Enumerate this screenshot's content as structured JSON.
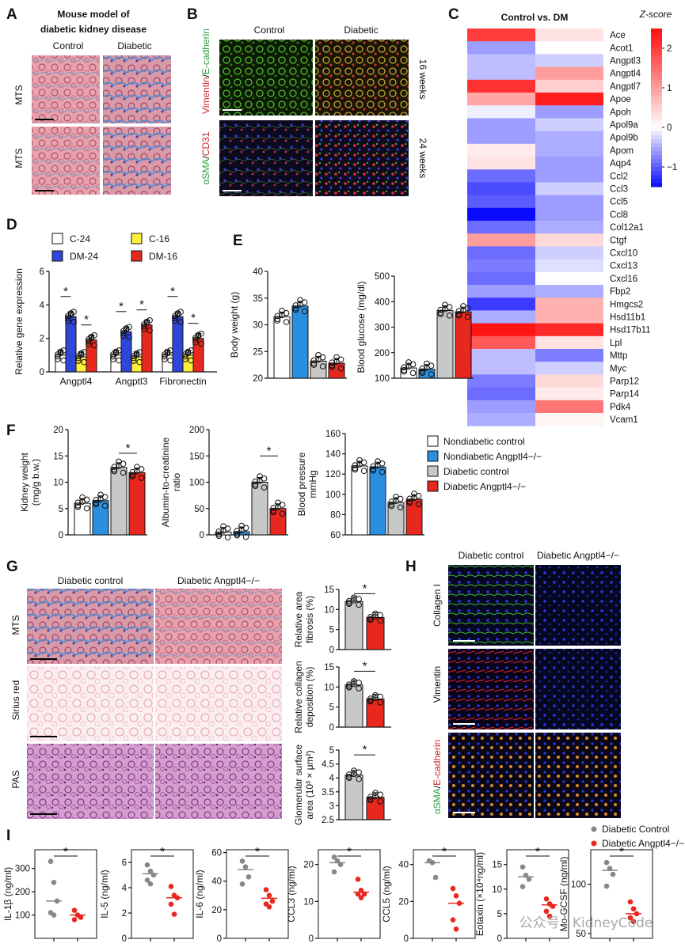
{
  "panels": {
    "A": {
      "letter": "A",
      "title_line1": "Mouse model of",
      "title_line2": "diabetic kidney disease",
      "col_control": "Control",
      "col_diabetic": "Diabetic",
      "row1": "MTS",
      "row2": "MTS"
    },
    "B": {
      "letter": "B",
      "col_control": "Control",
      "col_diabetic": "Diabetic",
      "row1_stain_a": "Vimentin",
      "row1_stain_b": "E-cadherin",
      "row2_stain_a": "αSMA",
      "row2_stain_b": "CD31",
      "sep": "/",
      "week1": "16 weeks",
      "week2": "24 weeks"
    },
    "C": {
      "letter": "C",
      "title": "Control vs. DM",
      "zlabel": "Z-score",
      "zticks": [
        "2",
        "1",
        "0",
        "−1"
      ]
    },
    "D": {
      "letter": "D",
      "legend": [
        "C-24",
        "DM-24",
        "C-16",
        "DM-16"
      ]
    },
    "E": {
      "letter": "E"
    },
    "F": {
      "letter": "F",
      "legend": [
        "Nondiabetic control",
        "Nondiabetic Angptl4−/−",
        "Diabetic control",
        "Diabetic Angptl4−/−"
      ]
    },
    "G": {
      "letter": "G",
      "col_a": "Diabetic control",
      "col_b": "Diabetic Angptl4−/−",
      "row1": "MTS",
      "row2": "Sirius red",
      "row3": "PAS"
    },
    "H": {
      "letter": "H",
      "col_a": "Diabetic control",
      "col_b": "Diabetic Angptl4−/−",
      "row1": "Collagen I",
      "row2": "Vimentin",
      "row3_a": "αSMA",
      "row3_b": "E-cadherin",
      "sep": "/"
    },
    "I": {
      "letter": "I",
      "legend": [
        "Diabetic Control",
        "Diabetic Angptl4−/−"
      ]
    }
  },
  "watermark": "公众号 · KidneyCode",
  "colors": {
    "white": "#ffffff",
    "blue": "#2f46d8",
    "yellow": "#ffef3a",
    "red": "#e8281e",
    "lightblue": "#2b8fe0",
    "gray": "#c8c8c8",
    "dotgray": "#888888",
    "dotred": "#e8281e"
  },
  "chart_data": [
    {
      "id": "C",
      "type": "heatmap",
      "title": "Control vs. DM",
      "columns": [
        "Control",
        "DM"
      ],
      "colorbar": {
        "min": -1.5,
        "max": 2.5,
        "ticks": [
          2,
          1,
          0,
          -1
        ],
        "label": "Z-score"
      },
      "genes": [
        "Ace",
        "Acot1",
        "Angptl3",
        "Angptl4",
        "Angptl7",
        "Apoe",
        "Apoh",
        "Apol9a",
        "Apol9b",
        "Apom",
        "Aqp4",
        "Ccl2",
        "Ccl3",
        "Ccl5",
        "Ccl8",
        "Col12a1",
        "Ctgf",
        "Cxcl10",
        "Cxcl13",
        "Cxcl16",
        "Fbp2",
        "Hmgcs2",
        "Hsd11b1",
        "Hsd17b11",
        "Lpl",
        "Mttp",
        "Myc",
        "Parp12",
        "Parp14",
        "Pdk4",
        "Vcam1"
      ],
      "values": [
        [
          2.0,
          0.3
        ],
        [
          -0.6,
          0.0
        ],
        [
          -0.4,
          -0.3
        ],
        [
          -0.4,
          1.0
        ],
        [
          2.1,
          0.5
        ],
        [
          0.9,
          2.3
        ],
        [
          -0.1,
          -0.6
        ],
        [
          -0.6,
          -0.3
        ],
        [
          -0.6,
          -0.5
        ],
        [
          0.2,
          -0.5
        ],
        [
          0.3,
          -0.6
        ],
        [
          -0.9,
          -0.6
        ],
        [
          -1.1,
          -0.3
        ],
        [
          -1.0,
          -0.6
        ],
        [
          -1.5,
          -0.6
        ],
        [
          -0.9,
          -0.5
        ],
        [
          1.0,
          0.4
        ],
        [
          -0.9,
          -0.3
        ],
        [
          -0.8,
          -0.2
        ],
        [
          -0.9,
          0.0
        ],
        [
          -0.6,
          -0.5
        ],
        [
          -1.2,
          0.8
        ],
        [
          -0.5,
          0.8
        ],
        [
          2.4,
          2.2
        ],
        [
          1.7,
          0.3
        ],
        [
          -0.4,
          -0.8
        ],
        [
          -0.4,
          -0.3
        ],
        [
          -0.8,
          0.4
        ],
        [
          -0.9,
          0.2
        ],
        [
          -0.6,
          1.4
        ],
        [
          -0.5,
          0.1
        ]
      ]
    },
    {
      "id": "D",
      "type": "bar",
      "ylabel": "Relative gene expression",
      "ylim": [
        0,
        6
      ],
      "yticks": [
        0,
        2,
        4,
        6
      ],
      "categories": [
        "Angptl4",
        "Angptl3",
        "Fibronectin"
      ],
      "series": [
        {
          "name": "C-24",
          "values": [
            1.0,
            1.0,
            1.0
          ]
        },
        {
          "name": "DM-24",
          "values": [
            3.3,
            2.4,
            3.3
          ]
        },
        {
          "name": "C-16",
          "values": [
            0.9,
            0.9,
            1.0
          ]
        },
        {
          "name": "DM-16",
          "values": [
            1.9,
            2.8,
            2.0
          ]
        }
      ],
      "significance": [
        "*",
        "*",
        "*",
        "*",
        "*",
        "*"
      ]
    },
    {
      "id": "E1",
      "type": "bar",
      "ylabel": "Body weight (g)",
      "ylim": [
        20,
        40
      ],
      "yticks": [
        20,
        25,
        30,
        35,
        40
      ],
      "categories": [
        "Nondiabetic control",
        "Nondiabetic Angptl4−/−",
        "Diabetic control",
        "Diabetic Angptl4−/−"
      ],
      "values": [
        31.5,
        33.5,
        23.2,
        22.8
      ]
    },
    {
      "id": "E2",
      "type": "bar",
      "ylabel": "Blood glucose (mg/dl)",
      "ylim": [
        100,
        500
      ],
      "yticks": [
        100,
        200,
        300,
        400,
        500
      ],
      "categories": [
        "Nondiabetic control",
        "Nondiabetic Angptl4−/−",
        "Diabetic control",
        "Diabetic Angptl4−/−"
      ],
      "values": [
        140,
        135,
        365,
        360
      ]
    },
    {
      "id": "F1",
      "type": "bar",
      "ylabel": "Kidney weight (mg/g b.w.)",
      "ylim": [
        0,
        20
      ],
      "yticks": [
        0,
        5,
        10,
        15,
        20
      ],
      "categories": [
        "Nondiabetic control",
        "Nondiabetic Angptl4−/−",
        "Diabetic control",
        "Diabetic Angptl4−/−"
      ],
      "values": [
        6.0,
        6.5,
        12.8,
        11.8
      ],
      "significance": [
        "*"
      ]
    },
    {
      "id": "F2",
      "type": "bar",
      "ylabel": "Albumin-to-creatinine ratio",
      "ylim": [
        0,
        200
      ],
      "yticks": [
        0,
        50,
        100,
        150,
        200
      ],
      "categories": [
        "Nondiabetic control",
        "Nondiabetic Angptl4−/−",
        "Diabetic control",
        "Diabetic Angptl4−/−"
      ],
      "values": [
        5,
        6,
        100,
        50
      ],
      "significance": [
        "*"
      ]
    },
    {
      "id": "F3",
      "type": "bar",
      "ylabel": "Blood pressure mmHg",
      "ylim": [
        60,
        160
      ],
      "yticks": [
        60,
        80,
        100,
        120,
        140,
        160
      ],
      "categories": [
        "Nondiabetic control",
        "Nondiabetic Angptl4−/−",
        "Diabetic control",
        "Diabetic Angptl4−/−"
      ],
      "values": [
        128,
        127,
        92,
        95
      ]
    },
    {
      "id": "G1",
      "type": "bar",
      "ylabel": "Relative area fibrosis (%)",
      "ylim": [
        0,
        15
      ],
      "yticks": [
        0,
        5,
        10,
        15
      ],
      "categories": [
        "Diabetic control",
        "Diabetic Angptl4−/−"
      ],
      "values": [
        12.0,
        8.0
      ],
      "significance": [
        "*"
      ]
    },
    {
      "id": "G2",
      "type": "bar",
      "ylabel": "Relative collagen deposition (%)",
      "ylim": [
        0,
        15
      ],
      "yticks": [
        0,
        5,
        10,
        15
      ],
      "categories": [
        "Diabetic control",
        "Diabetic Angptl4−/−"
      ],
      "values": [
        10.5,
        7.0
      ],
      "significance": [
        "*"
      ]
    },
    {
      "id": "G3",
      "type": "bar",
      "ylabel": "Glomerular surface area (10³ × μm²)",
      "ylim": [
        2.5,
        5.0
      ],
      "yticks": [
        2.5,
        3.0,
        3.5,
        4.0,
        4.5,
        5.0
      ],
      "categories": [
        "Diabetic control",
        "Diabetic Angptl4−/−"
      ],
      "values": [
        4.1,
        3.3
      ],
      "significance": [
        "*"
      ]
    },
    {
      "id": "I1",
      "type": "scatter",
      "ylabel": "IL-1β (ng/ml)",
      "ylim": [
        0,
        380
      ],
      "yticks": [
        100,
        200,
        300
      ],
      "series": [
        {
          "name": "Diabetic Control",
          "values": [
            330,
            240,
            160,
            110,
            100
          ]
        },
        {
          "name": "Diabetic Angptl4−/−",
          "values": [
            120,
            100,
            90,
            80
          ]
        }
      ],
      "medians": [
        160,
        100
      ],
      "significance": [
        "*"
      ]
    },
    {
      "id": "I2",
      "type": "scatter",
      "ylabel": "IL-5 (ng/ml)",
      "ylim": [
        0,
        7
      ],
      "yticks": [
        0,
        2,
        4,
        6
      ],
      "series": [
        {
          "name": "Diabetic Control",
          "values": [
            5.8,
            5.3,
            5.0,
            4.6,
            4.3
          ]
        },
        {
          "name": "Diabetic Angptl4−/−",
          "values": [
            4.1,
            3.4,
            3.2,
            2.7,
            1.9
          ]
        }
      ],
      "medians": [
        5.1,
        3.2
      ],
      "significance": [
        "*"
      ]
    },
    {
      "id": "I3",
      "type": "scatter",
      "ylabel": "IL-6 (ng/ml)",
      "ylim": [
        0,
        62
      ],
      "yticks": [
        0,
        20,
        40,
        60
      ],
      "series": [
        {
          "name": "Diabetic Control",
          "values": [
            54,
            50,
            43,
            38
          ]
        },
        {
          "name": "Diabetic Angptl4−/−",
          "values": [
            34,
            30,
            26,
            24,
            22
          ]
        }
      ],
      "medians": [
        48,
        28
      ],
      "significance": [
        "*"
      ]
    },
    {
      "id": "I4",
      "type": "scatter",
      "ylabel": "CCL3 (ng/ml)",
      "ylim": [
        0,
        24
      ],
      "yticks": [
        0,
        10,
        20
      ],
      "series": [
        {
          "name": "Diabetic Control",
          "values": [
            22,
            21,
            20,
            18
          ]
        },
        {
          "name": "Diabetic Angptl4−/−",
          "values": [
            16,
            13,
            12,
            12,
            11
          ]
        }
      ],
      "medians": [
        20.5,
        12.5
      ],
      "significance": [
        "*"
      ]
    },
    {
      "id": "I5",
      "type": "scatter",
      "ylabel": "CCL5 (ng/ml)",
      "ylim": [
        0,
        48
      ],
      "yticks": [
        0,
        20,
        40
      ],
      "series": [
        {
          "name": "Diabetic Control",
          "values": [
            42,
            41,
            33
          ]
        },
        {
          "name": "Diabetic Angptl4−/−",
          "values": [
            27,
            23,
            19,
            10,
            5
          ]
        }
      ],
      "medians": [
        41,
        19
      ],
      "significance": [
        "*"
      ]
    },
    {
      "id": "I6",
      "type": "scatter",
      "ylabel": "Eotaxin (×10⁴ng/ml)",
      "ylim": [
        0,
        18
      ],
      "yticks": [
        0,
        5,
        10,
        15
      ],
      "series": [
        {
          "name": "Diabetic Control",
          "values": [
            14.5,
            12.8,
            12.0,
            10.5
          ]
        },
        {
          "name": "Diabetic Angptl4−/−",
          "values": [
            8.0,
            7.0,
            6.5,
            5.5,
            4.5
          ]
        }
      ],
      "medians": [
        12.5,
        6.8
      ],
      "significance": [
        "*"
      ]
    },
    {
      "id": "I7",
      "type": "scatter",
      "ylabel": "Mo-GCSF (ng/ml)",
      "ylim": [
        45,
        135
      ],
      "yticks": [
        50,
        100
      ],
      "series": [
        {
          "name": "Diabetic Control",
          "values": [
            122,
            116,
            110,
            98
          ]
        },
        {
          "name": "Diabetic Angptl4−/−",
          "values": [
            82,
            75,
            70,
            66,
            62
          ]
        }
      ],
      "medians": [
        114,
        70
      ],
      "significance": [
        "*"
      ]
    }
  ]
}
